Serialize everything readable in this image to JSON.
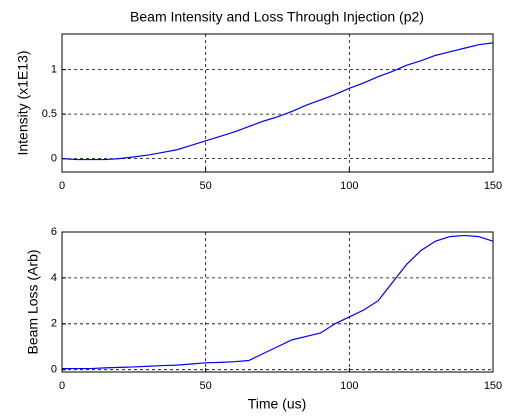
{
  "chart_data": [
    {
      "type": "line",
      "title": "Beam Intensity and Loss Through Injection (p2)",
      "ylabel": "Intensity (x1E13)",
      "x": [
        0,
        5,
        10,
        15,
        20,
        25,
        30,
        35,
        40,
        45,
        50,
        55,
        60,
        65,
        70,
        75,
        80,
        85,
        90,
        95,
        100,
        105,
        110,
        115,
        120,
        125,
        130,
        135,
        140,
        145,
        150
      ],
      "series": [
        {
          "color": "#0000ff",
          "values": [
            0,
            -0.01,
            -0.01,
            -0.01,
            0,
            0.02,
            0.04,
            0.07,
            0.1,
            0.15,
            0.2,
            0.25,
            0.3,
            0.36,
            0.42,
            0.47,
            0.53,
            0.6,
            0.66,
            0.72,
            0.79,
            0.85,
            0.92,
            0.98,
            1.05,
            1.1,
            1.16,
            1.2,
            1.24,
            1.28,
            1.3
          ]
        }
      ],
      "xlim": [
        0,
        150
      ],
      "xticks": [
        0,
        50,
        100,
        150
      ],
      "ylim": [
        -0.15,
        1.4
      ],
      "yticks": [
        0,
        0.5,
        1
      ],
      "grid": true
    },
    {
      "type": "line",
      "ylabel": "Beam Loss (Arb)",
      "xlabel": "Time (us)",
      "x": [
        0,
        5,
        10,
        15,
        20,
        25,
        30,
        35,
        40,
        45,
        50,
        55,
        60,
        65,
        70,
        75,
        80,
        85,
        90,
        95,
        100,
        105,
        110,
        115,
        120,
        125,
        130,
        135,
        140,
        145,
        150
      ],
      "series": [
        {
          "color": "#0000ff",
          "values": [
            0.05,
            0.05,
            0.05,
            0.08,
            0.1,
            0.12,
            0.15,
            0.18,
            0.2,
            0.25,
            0.3,
            0.32,
            0.35,
            0.4,
            0.7,
            1.0,
            1.3,
            1.45,
            1.6,
            2.0,
            2.3,
            2.6,
            3.0,
            3.8,
            4.6,
            5.2,
            5.6,
            5.8,
            5.85,
            5.8,
            5.6
          ]
        }
      ],
      "xlim": [
        0,
        150
      ],
      "xticks": [
        0,
        50,
        100,
        150
      ],
      "ylim": [
        -0.1,
        6
      ],
      "yticks": [
        0,
        2,
        4,
        6
      ],
      "grid": true
    }
  ]
}
